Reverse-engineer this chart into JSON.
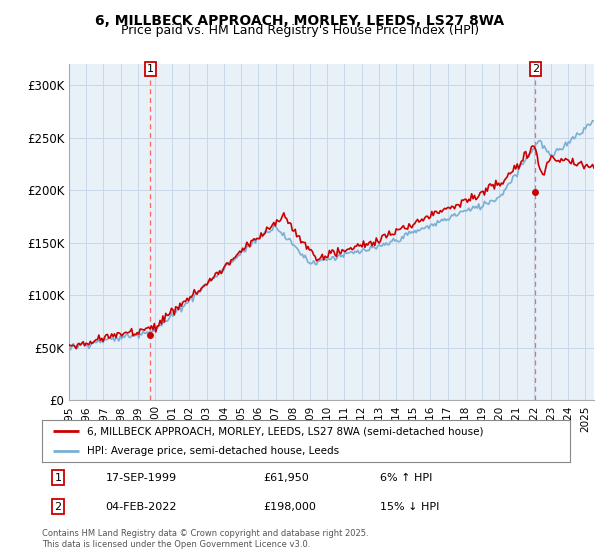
{
  "title": "6, MILLBECK APPROACH, MORLEY, LEEDS, LS27 8WA",
  "subtitle": "Price paid vs. HM Land Registry's House Price Index (HPI)",
  "ylim": [
    0,
    320000
  ],
  "yticks": [
    0,
    50000,
    100000,
    150000,
    200000,
    250000,
    300000
  ],
  "ytick_labels": [
    "£0",
    "£50K",
    "£100K",
    "£150K",
    "£200K",
    "£250K",
    "£300K"
  ],
  "xlim_start": 1995.0,
  "xlim_end": 2025.5,
  "xticks": [
    1995,
    1996,
    1997,
    1998,
    1999,
    2000,
    2001,
    2002,
    2003,
    2004,
    2005,
    2006,
    2007,
    2008,
    2009,
    2010,
    2011,
    2012,
    2013,
    2014,
    2015,
    2016,
    2017,
    2018,
    2019,
    2020,
    2021,
    2022,
    2023,
    2024,
    2025
  ],
  "background_color": "#ffffff",
  "chart_bg_color": "#e8f0f8",
  "grid_color": "#c8d8e8",
  "sale1_date": 1999.71,
  "sale1_price": 61950,
  "sale1_label": "1",
  "sale2_date": 2022.09,
  "sale2_price": 198000,
  "sale2_label": "2",
  "legend_line1": "6, MILLBECK APPROACH, MORLEY, LEEDS, LS27 8WA (semi-detached house)",
  "legend_line2": "HPI: Average price, semi-detached house, Leeds",
  "hpi_color": "#7bafd4",
  "price_color": "#cc0000",
  "title_fontsize": 10,
  "subtitle_fontsize": 9,
  "footer": "Contains HM Land Registry data © Crown copyright and database right 2025.\nThis data is licensed under the Open Government Licence v3.0."
}
